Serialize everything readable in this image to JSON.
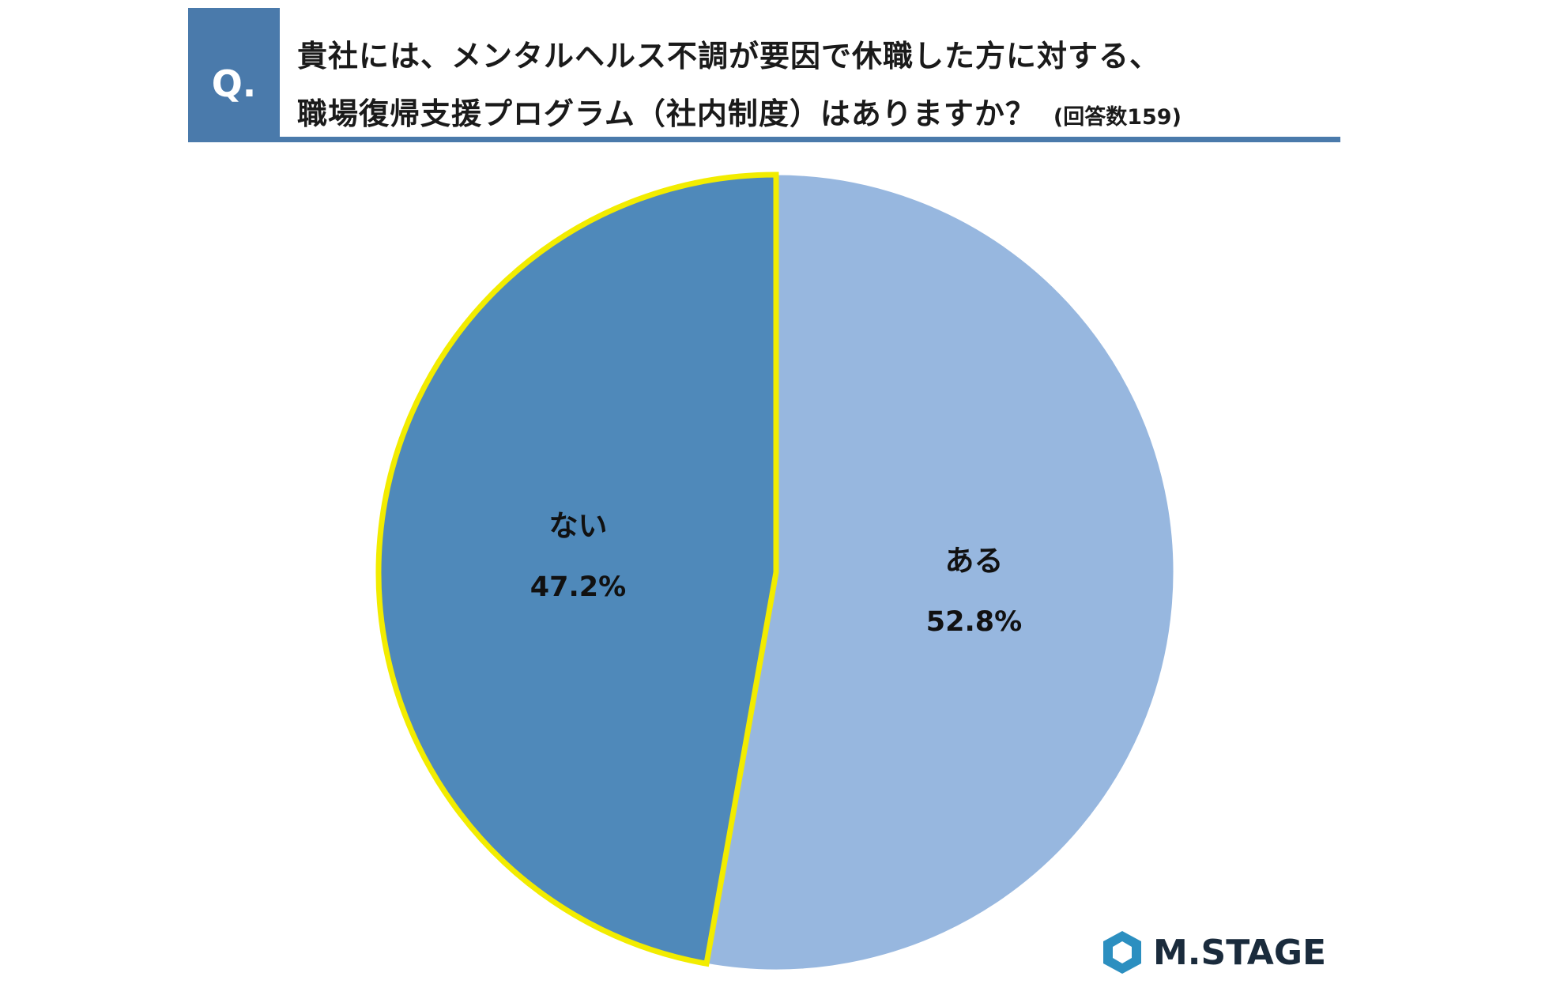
{
  "question": {
    "marker": "Q.",
    "line1": "貴社には、メンタルヘルス不調が要因で休職した方に対する、",
    "line2": "職場復帰支援プログラム（社内制度）はありますか？",
    "count_note": "(回答数159)"
  },
  "chart_data": {
    "type": "pie",
    "title": "",
    "categories": [
      "ある",
      "ない"
    ],
    "values": [
      52.8,
      47.2
    ],
    "value_labels": [
      "52.8%",
      "47.2%"
    ],
    "colors": [
      "#97b7df",
      "#4f89ba"
    ],
    "highlight": {
      "category": "ない",
      "outline_color": "#f2ec00"
    },
    "start": "12 o'clock",
    "direction": "clockwise",
    "legend": "none"
  },
  "brand": {
    "logo_text": "M.STAGE",
    "logo_icon": "hexagon-logo-icon",
    "logo_color": "#2c8fc0"
  },
  "colors": {
    "header_accent": "#4a7aab"
  }
}
